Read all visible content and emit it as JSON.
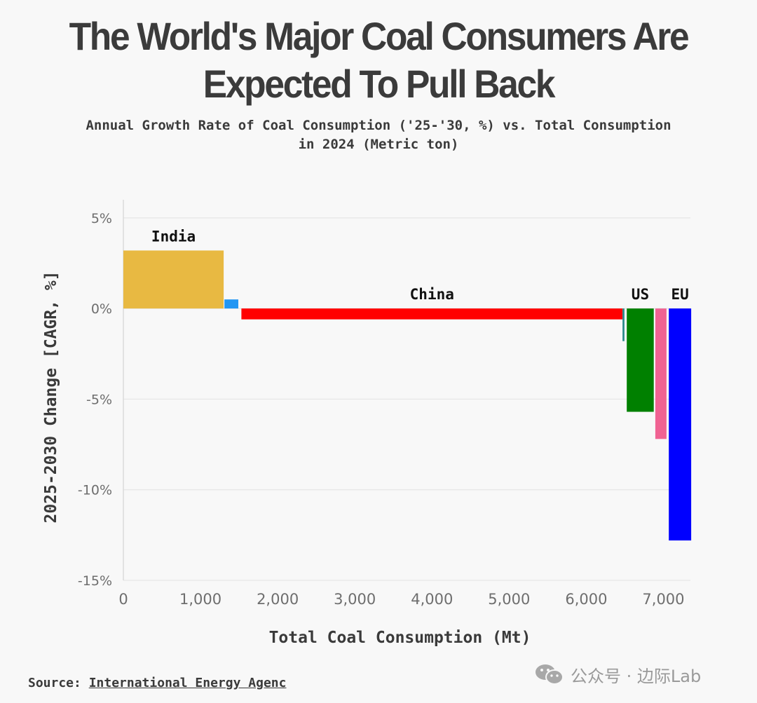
{
  "header": {
    "title_line1": "The World's Major Coal Consumers Are",
    "title_line2": "Expected To Pull Back",
    "subtitle_line1": "Annual Growth Rate of Coal Consumption ('25-'30, %) vs. Total Consumption",
    "subtitle_line2": "in 2024 (Metric ton)"
  },
  "footer": {
    "source_label": "Source:",
    "source_text": "International Energy Agenc",
    "watermark": "公众号 · 边际Lab"
  },
  "colors": {
    "india": "#e8b942",
    "china": "#ff0000",
    "us": "#008000",
    "eu": "#0000ff",
    "small_blue": "#2196f3",
    "small_teal": "#2a8a8a",
    "pink": "#f06292",
    "grid": "#e6e6e6",
    "text": "#3a3a3a"
  },
  "chart_data": {
    "type": "bar",
    "subtype": "variable-width",
    "title": "The World's Major Coal Consumers Are Expected To Pull Back",
    "subtitle": "Annual Growth Rate of Coal Consumption ('25-'30, %) vs. Total Consumption in 2024 (Metric ton)",
    "xlabel": "Total Coal Consumption (Mt)",
    "ylabel": "2025-2030 Change [CAGR, %]",
    "xlim": [
      0,
      7350
    ],
    "ylim": [
      -15,
      6
    ],
    "xticks": [
      0,
      1000,
      2000,
      3000,
      4000,
      5000,
      6000,
      7000
    ],
    "xtick_labels": [
      "0",
      "1,000",
      "2,000",
      "3,000",
      "4,000",
      "5,000",
      "6,000",
      "7,000"
    ],
    "yticks": [
      5,
      0,
      -5,
      -10,
      -15
    ],
    "ytick_labels": [
      "5%",
      "0%",
      "-5%",
      "-10%",
      "-15%"
    ],
    "grid": true,
    "series": [
      {
        "name": "India",
        "label": "India",
        "start": 0,
        "width": 1300,
        "value": 3.2,
        "color": "#e8b942"
      },
      {
        "name": "",
        "label": "",
        "start": 1310,
        "width": 180,
        "value": 0.5,
        "color": "#2196f3"
      },
      {
        "name": "China",
        "label": "China",
        "start": 1530,
        "width": 4940,
        "value": -0.6,
        "color": "#ff0000"
      },
      {
        "name": "",
        "label": "",
        "start": 6470,
        "width": 25,
        "value": -1.8,
        "color": "#2a8a8a"
      },
      {
        "name": "US",
        "label": "US",
        "start": 6525,
        "width": 350,
        "value": -5.7,
        "color": "#008000"
      },
      {
        "name": "",
        "label": "",
        "start": 6895,
        "width": 145,
        "value": -7.2,
        "color": "#f06292"
      },
      {
        "name": "EU",
        "label": "EU",
        "start": 7070,
        "width": 290,
        "value": -12.8,
        "color": "#0000ff"
      }
    ]
  }
}
